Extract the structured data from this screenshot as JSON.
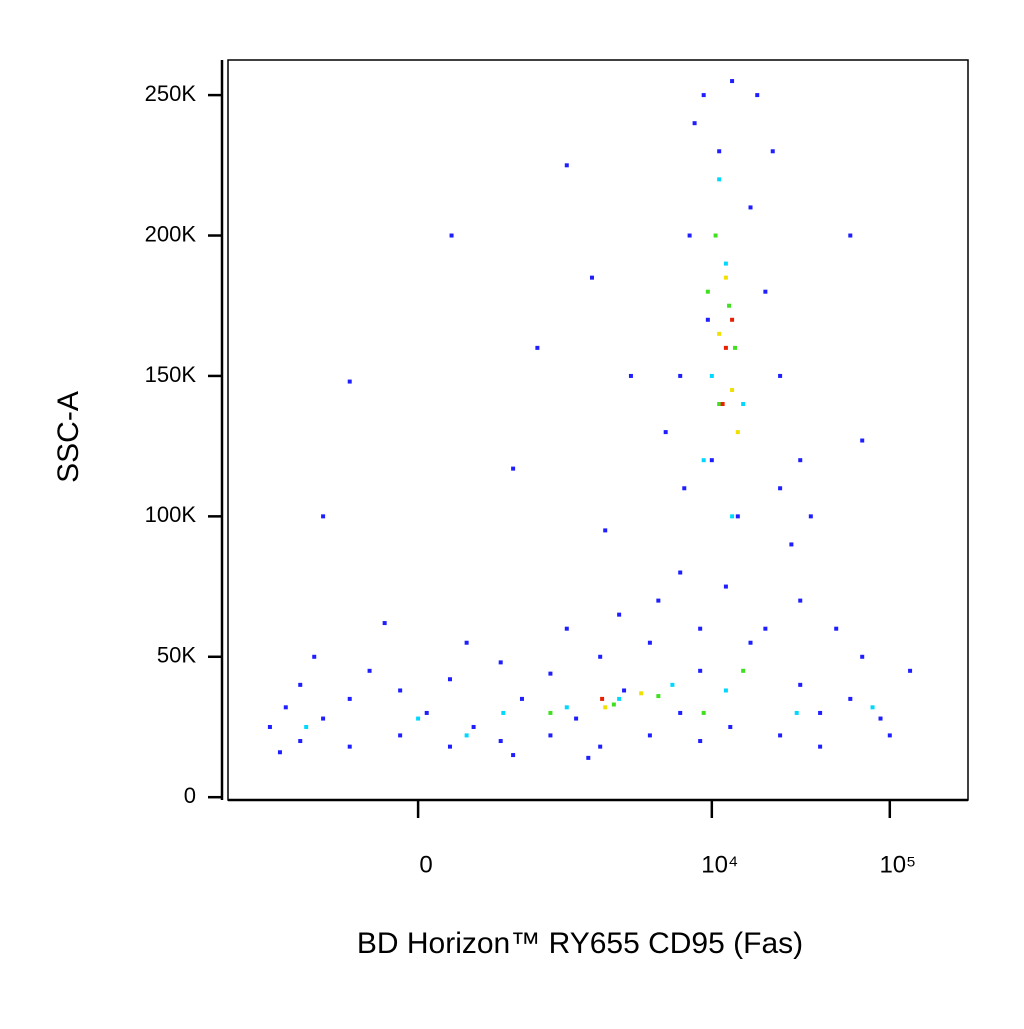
{
  "chart_data": {
    "type": "scatter",
    "x_label": "BD Horizon™ RY655 CD95 (Fas)",
    "y_label": "SSC-A",
    "xscale": "biex",
    "xlim": [
      -2600,
      275000
    ],
    "xticks": [
      0,
      {
        "value": 10000,
        "label": "10⁴"
      },
      {
        "value": 100000,
        "label": "10⁵"
      }
    ],
    "ylim": [
      -1000,
      262500
    ],
    "yticks": [
      0,
      {
        "value": 50000,
        "label": "50K"
      },
      {
        "value": 100000,
        "label": "100K"
      },
      {
        "value": 150000,
        "label": "150K"
      },
      {
        "value": 200000,
        "label": "200K"
      },
      {
        "value": 250000,
        "label": "250K"
      }
    ],
    "series": [
      {
        "color": "#1e1eff",
        "x": [
          -1490,
          -1200,
          -980,
          -980,
          -700,
          -450,
          -450,
          -300,
          -105,
          -105,
          50,
          190,
          190,
          350,
          575,
          575,
          800,
          1200,
          1200,
          1700,
          2340,
          2340,
          3200,
          4480,
          4480,
          6640,
          8600,
          8600,
          12700,
          16500,
          24200,
          31400,
          40600,
          40600,
          60000,
          88700,
          130000,
          -1300,
          -800,
          300,
          1500,
          3000,
          5000,
          20000,
          70000,
          100000,
          50000,
          -200,
          700,
          2000,
          6640,
          6640,
          7500,
          8000,
          9000,
          10000,
          11000,
          14000,
          16500,
          18000,
          20000,
          24200,
          24200,
          28000,
          31400,
          31400,
          8600,
          7000,
          9500,
          22000,
          13000,
          5500,
          36000,
          12000,
          -700,
          -450,
          200,
          700,
          1500,
          2100,
          60000,
          70000,
          1000,
          3500,
          2500
        ],
        "values": [
          25000,
          32000,
          20000,
          40000,
          28000,
          18000,
          35000,
          45000,
          22000,
          38000,
          30000,
          18000,
          42000,
          25000,
          20000,
          48000,
          35000,
          22000,
          44000,
          28000,
          18000,
          50000,
          38000,
          22000,
          55000,
          30000,
          45000,
          20000,
          25000,
          55000,
          22000,
          40000,
          30000,
          18000,
          35000,
          28000,
          45000,
          16000,
          50000,
          55000,
          60000,
          65000,
          70000,
          60000,
          50000,
          22000,
          60000,
          62000,
          15000,
          14000,
          80000,
          150000,
          200000,
          240000,
          250000,
          120000,
          230000,
          100000,
          210000,
          250000,
          180000,
          110000,
          150000,
          90000,
          70000,
          120000,
          60000,
          110000,
          170000,
          230000,
          255000,
          130000,
          100000,
          75000,
          100000,
          148000,
          200000,
          117000,
          225000,
          185000,
          200000,
          127000,
          160000,
          150000,
          95000
        ]
      },
      {
        "color": "#00d8ff",
        "x": [
          -900,
          0,
          600,
          1500,
          3000,
          6000,
          12000,
          30000,
          10000,
          12000,
          9000,
          15000,
          11000,
          13000,
          80000,
          300
        ],
        "values": [
          25000,
          28000,
          30000,
          32000,
          35000,
          40000,
          38000,
          30000,
          150000,
          190000,
          120000,
          140000,
          220000,
          100000,
          32000,
          22000
        ]
      },
      {
        "color": "#40e020",
        "x": [
          1200,
          2800,
          5000,
          9000,
          15000,
          11000,
          12500,
          10500,
          13500,
          9500
        ],
        "values": [
          30000,
          33000,
          36000,
          30000,
          45000,
          140000,
          175000,
          200000,
          160000,
          180000
        ]
      },
      {
        "color": "#f0e000",
        "x": [
          2500,
          4000,
          11000,
          13000,
          12000,
          14000
        ],
        "values": [
          32000,
          37000,
          165000,
          145000,
          185000,
          130000
        ]
      },
      {
        "color": "#e82000",
        "x": [
          2400,
          12000,
          11500,
          13000
        ],
        "values": [
          35000,
          160000,
          140000,
          170000
        ]
      }
    ]
  }
}
